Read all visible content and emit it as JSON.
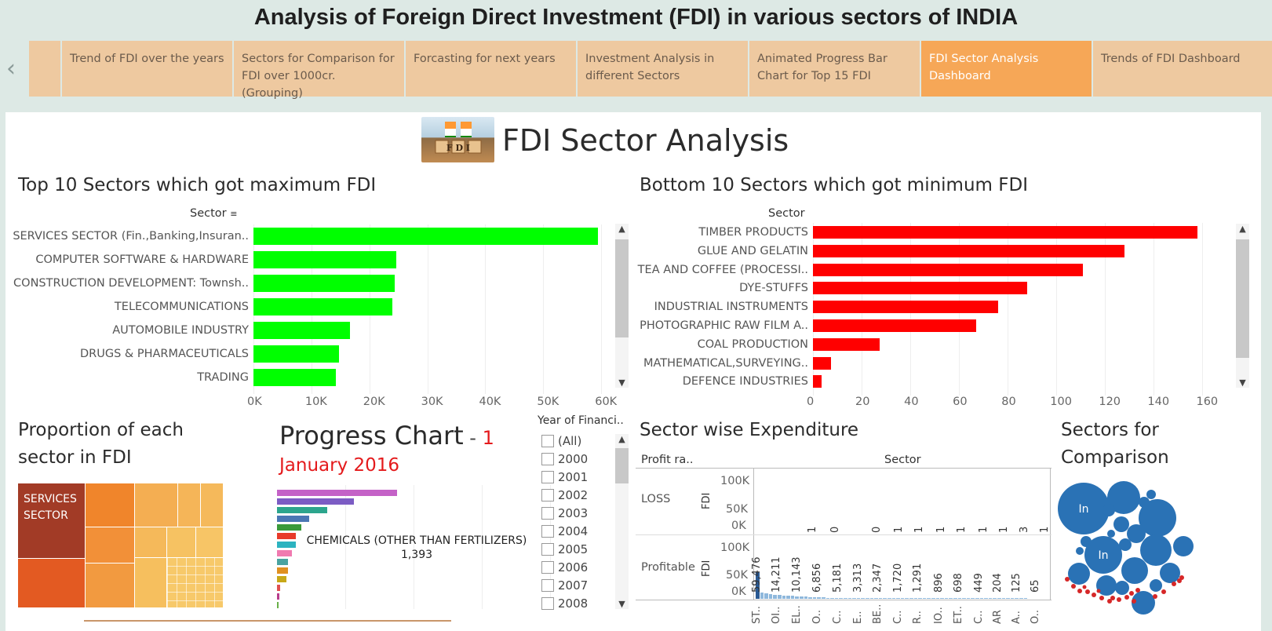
{
  "header": {
    "title": "Analysis of Foreign Direct Investment (FDI) in various sectors of INDIA"
  },
  "tabs": [
    {
      "label": "Trend of FDI over the years"
    },
    {
      "label": "Sectors for Comparison for FDI over 1000cr. (Grouping)"
    },
    {
      "label": "Forcasting for next years"
    },
    {
      "label": "Investment Analysis in different Sectors"
    },
    {
      "label": "Animated Progress  Bar Chart for Top 15 FDI"
    },
    {
      "label": "FDI Sector Analysis Dashboard",
      "active": true
    },
    {
      "label": "Trends of FDI  Dashboard"
    }
  ],
  "dashboard": {
    "title": "FDI Sector Analysis",
    "logo_text": "F D I"
  },
  "top10": {
    "title": "Top 10 Sectors which got maximum FDI",
    "field_header": "Sector"
  },
  "bottom10": {
    "title": "Bottom 10 Sectors which got minimum FDI",
    "field_header": "Sector"
  },
  "proportion": {
    "title_line1": "Proportion of each",
    "title_line2": "sector in FDI",
    "cell_label_line1": "SERVICES",
    "cell_label_line2": "SECTOR"
  },
  "progress": {
    "title": "Progress Chart",
    "title_sep": " - ",
    "day": "1",
    "month_year": "January 2016",
    "annotation_name": "CHEMICALS (OTHER THAN FERTILIZERS)",
    "annotation_value": "1,393"
  },
  "year_filter": {
    "title": "Year of Financi..",
    "options": [
      "(All)",
      "2000",
      "2001",
      "2002",
      "2003",
      "2004",
      "2005",
      "2006",
      "2007",
      "2008"
    ]
  },
  "expenditure": {
    "title": "Sector wise Expenditure",
    "row_header": "Profit ra..",
    "col_header": "Sector",
    "rows": [
      "LOSS",
      "Profitable"
    ],
    "fdi_axis": "FDI",
    "loss_ticks": [
      "100K",
      "50K",
      "0K"
    ],
    "profit_ticks": [
      "100K",
      "50K",
      "0K"
    ],
    "loss_labels": [
      "1",
      "0",
      "0",
      "1",
      "1",
      "1",
      "1",
      "1",
      "1",
      "3",
      "1"
    ],
    "profit_labels": [
      "59,476",
      "14,211",
      "10,143",
      "6,856",
      "5,181",
      "3,313",
      "2,347",
      "1,720",
      "1,291",
      "896",
      "698",
      "449",
      "204",
      "125",
      "65"
    ],
    "sector_abbrevs": [
      "ST..",
      "OI..",
      "EL..",
      "O..",
      "C..",
      "E..",
      "BE..",
      "C..",
      "R..",
      "IO..",
      "ET..",
      "C..",
      "AR",
      "A..",
      "O.."
    ]
  },
  "comparison": {
    "title_line1": "Sectors for",
    "title_line2": "Comparison",
    "bubble_label": "In"
  },
  "chart_data": [
    {
      "type": "bar",
      "title": "Top 10 Sectors which got maximum FDI",
      "orientation": "horizontal",
      "color": "#00ff00",
      "categories": [
        "SERVICES SECTOR (Fin.,Banking,Insuran..",
        "COMPUTER SOFTWARE & HARDWARE",
        "CONSTRUCTION DEVELOPMENT: Townsh..",
        "TELECOMMUNICATIONS",
        "AUTOMOBILE INDUSTRY",
        "DRUGS & PHARMACEUTICALS",
        "TRADING"
      ],
      "values": [
        59476,
        24670,
        24300,
        23950,
        16700,
        14710,
        14200
      ],
      "ticks": [
        "0K",
        "10K",
        "20K",
        "30K",
        "40K",
        "50K",
        "60K"
      ],
      "xlim": [
        0,
        62000
      ]
    },
    {
      "type": "bar",
      "title": "Bottom 10 Sectors which got minimum FDI",
      "orientation": "horizontal",
      "color": "#ff0000",
      "categories": [
        "TIMBER PRODUCTS",
        "GLUE AND GELATIN",
        "TEA AND COFFEE (PROCESSI..",
        "DYE-STUFFS",
        "INDUSTRIAL INSTRUMENTS",
        "PHOTOGRAPHIC RAW FILM A..",
        "COAL PRODUCTION",
        "MATHEMATICAL,SURVEYING..",
        "DEFENCE INDUSTRIES"
      ],
      "values": [
        158,
        128,
        111,
        88,
        76,
        67,
        27.5,
        7.5,
        3.5
      ],
      "ticks": [
        "0",
        "20",
        "40",
        "60",
        "80",
        "100",
        "120",
        "140",
        "160"
      ],
      "xlim": [
        0,
        165
      ]
    }
  ],
  "colors": {
    "tab_bg": "#eec9a0",
    "tab_active": "#f6a757",
    "top_bar": "#00ff00",
    "bottom_bar": "#ff0000",
    "bubble": "#2a72b5",
    "bubble_small": "#d62728"
  }
}
